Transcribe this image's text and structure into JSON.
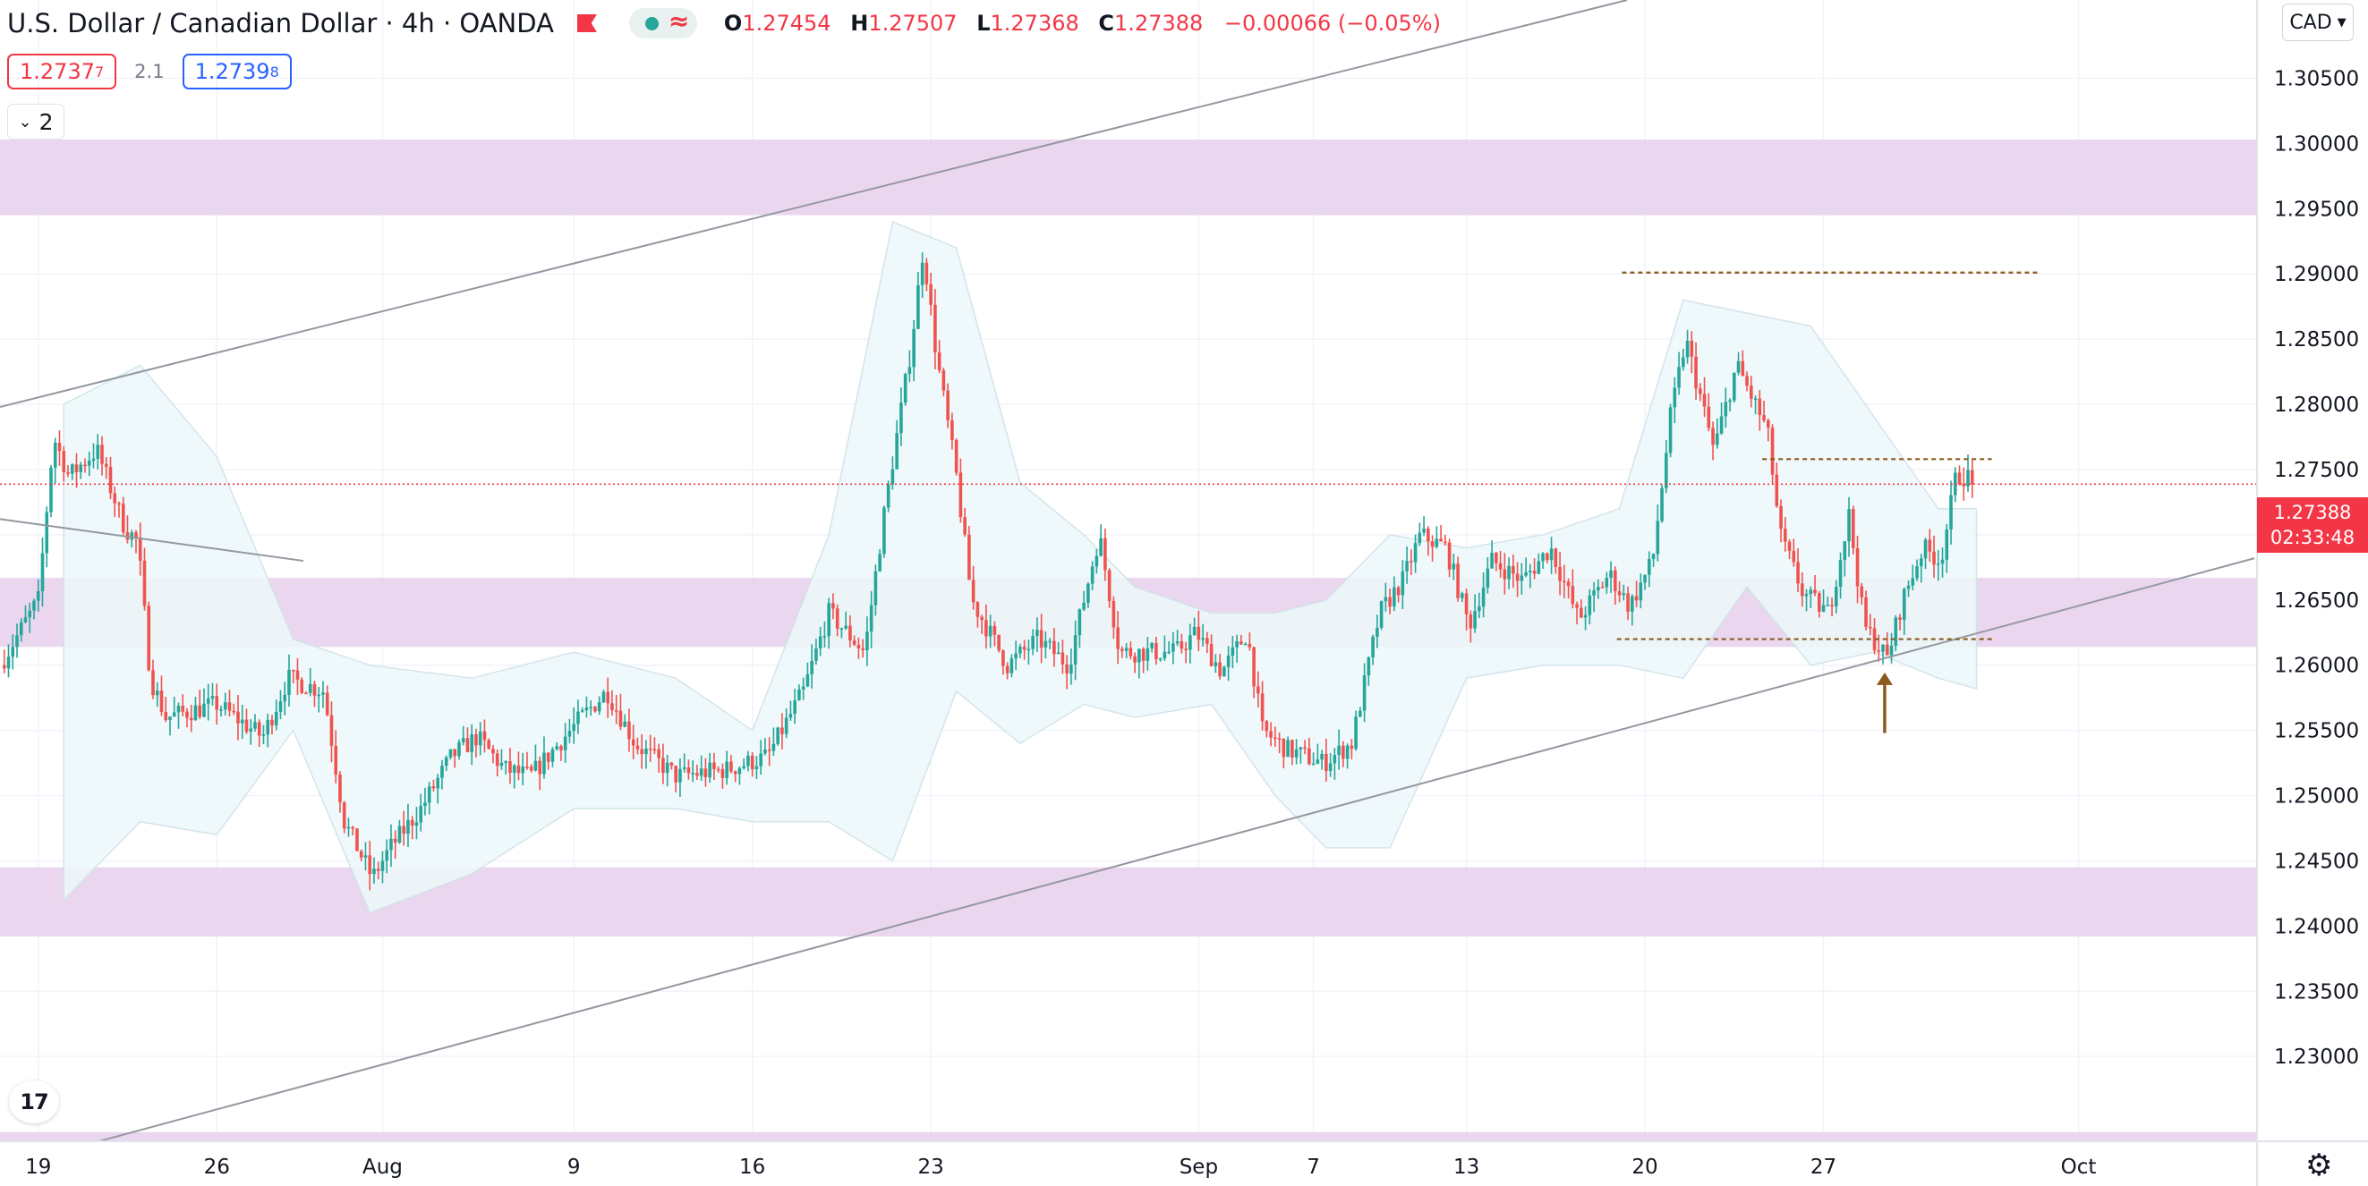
{
  "header": {
    "symbol": "U.S. Dollar / Canadian Dollar · 4h · OANDA",
    "ohlc": {
      "o_key": "O",
      "o": "1.27454",
      "h_key": "H",
      "h": "1.27507",
      "l_key": "L",
      "l": "1.27368",
      "c_key": "C",
      "c": "1.27388",
      "change": "−0.00066 (−0.05%)"
    },
    "indicator_icon": "wave-icon"
  },
  "quote": {
    "sell": "1.2737",
    "sell_small": "7",
    "spread": "2.1",
    "buy": "1.2739",
    "buy_small": "8"
  },
  "collapse_label": "2",
  "currency": "CAD",
  "last_price": {
    "value": "1.27388",
    "countdown": "02:33:48"
  },
  "logo_text": "17",
  "colors": {
    "up": "#26a69a",
    "down": "#ef5350",
    "zone": "#e6d0ec",
    "band": "#eef8fa",
    "level": "#8b5a1e",
    "trend": "#9598a1",
    "accent": "#2962ff"
  },
  "chart_data": {
    "type": "candlestick",
    "title": "U.S. Dollar / Canadian Dollar · 4h · OANDA",
    "xlabel": "",
    "ylabel": "",
    "y_ticks": [
      "1.30500",
      "1.30000",
      "1.29500",
      "1.29000",
      "1.28500",
      "1.28000",
      "1.27500",
      "1.27000",
      "1.26500",
      "1.26000",
      "1.25500",
      "1.25000",
      "1.24500",
      "1.24000",
      "1.23500",
      "1.23000"
    ],
    "x_ticks": [
      "19",
      "26",
      "Aug",
      "9",
      "16",
      "23",
      "Sep",
      "7",
      "13",
      "20",
      "27",
      "Oct"
    ],
    "x_tick_days": [
      0,
      7,
      13.5,
      21,
      28,
      35,
      45.5,
      50,
      56,
      63,
      70,
      80
    ],
    "xlim_days": [
      -1.5,
      87
    ],
    "ylim": [
      1.2235,
      1.311
    ],
    "grid": true,
    "last_price": 1.27388,
    "zones": [
      [
        1.2945,
        1.3003
      ],
      [
        1.2614,
        1.2667
      ],
      [
        1.2392,
        1.2445
      ],
      [
        1.2229,
        1.2242
      ]
    ],
    "levels": [
      {
        "y": 1.2901,
        "x0": 62.1,
        "x1": 78.5
      },
      {
        "y": 1.2758,
        "x0": 67.6,
        "x1": 76.6
      },
      {
        "y": 1.262,
        "x0": 61.9,
        "x1": 76.7
      }
    ],
    "trendlines": [
      {
        "x0": -1.5,
        "y0": 1.2798,
        "x1": 62.3,
        "y1": 1.311
      },
      {
        "x0": 2.0,
        "y0": 1.2233,
        "x1": 86.9,
        "y1": 1.2682
      },
      {
        "x0": -1.5,
        "y0": 1.2712,
        "x1": 10.4,
        "y1": 1.268
      }
    ],
    "arrow": {
      "x": 72.4,
      "y_from": 1.2548,
      "y_to": 1.2593
    },
    "key_points": [
      {
        "d": -1.5,
        "p": 1.26
      },
      {
        "d": 0.0,
        "p": 1.265
      },
      {
        "d": 0.6,
        "p": 1.2775
      },
      {
        "d": 1.2,
        "p": 1.2745
      },
      {
        "d": 2.3,
        "p": 1.2765
      },
      {
        "d": 3.4,
        "p": 1.2705
      },
      {
        "d": 3.9,
        "p": 1.2695
      },
      {
        "d": 4.4,
        "p": 1.259
      },
      {
        "d": 5.0,
        "p": 1.256
      },
      {
        "d": 7.0,
        "p": 1.257
      },
      {
        "d": 8.8,
        "p": 1.2545
      },
      {
        "d": 9.8,
        "p": 1.259
      },
      {
        "d": 11.2,
        "p": 1.258
      },
      {
        "d": 12.0,
        "p": 1.248
      },
      {
        "d": 13.1,
        "p": 1.2437
      },
      {
        "d": 13.8,
        "p": 1.246
      },
      {
        "d": 15.0,
        "p": 1.249
      },
      {
        "d": 16.2,
        "p": 1.253
      },
      {
        "d": 17.2,
        "p": 1.2545
      },
      {
        "d": 18.3,
        "p": 1.252
      },
      {
        "d": 19.3,
        "p": 1.2515
      },
      {
        "d": 21.3,
        "p": 1.256
      },
      {
        "d": 22.3,
        "p": 1.258
      },
      {
        "d": 23.4,
        "p": 1.254
      },
      {
        "d": 25.0,
        "p": 1.2515
      },
      {
        "d": 27.0,
        "p": 1.252
      },
      {
        "d": 28.6,
        "p": 1.253
      },
      {
        "d": 30.0,
        "p": 1.258
      },
      {
        "d": 31.0,
        "p": 1.264
      },
      {
        "d": 32.4,
        "p": 1.261
      },
      {
        "d": 33.2,
        "p": 1.272
      },
      {
        "d": 34.2,
        "p": 1.284
      },
      {
        "d": 34.7,
        "p": 1.292
      },
      {
        "d": 35.2,
        "p": 1.284
      },
      {
        "d": 36.0,
        "p": 1.2745
      },
      {
        "d": 36.6,
        "p": 1.265
      },
      {
        "d": 38.0,
        "p": 1.26
      },
      {
        "d": 39.2,
        "p": 1.262
      },
      {
        "d": 40.4,
        "p": 1.26
      },
      {
        "d": 41.6,
        "p": 1.27
      },
      {
        "d": 42.4,
        "p": 1.261
      },
      {
        "d": 44.6,
        "p": 1.261
      },
      {
        "d": 45.4,
        "p": 1.2625
      },
      {
        "d": 46.4,
        "p": 1.2595
      },
      {
        "d": 47.4,
        "p": 1.2625
      },
      {
        "d": 48.0,
        "p": 1.255
      },
      {
        "d": 49.0,
        "p": 1.2535
      },
      {
        "d": 50.4,
        "p": 1.2525
      },
      {
        "d": 51.5,
        "p": 1.254
      },
      {
        "d": 52.6,
        "p": 1.264
      },
      {
        "d": 53.5,
        "p": 1.2665
      },
      {
        "d": 54.2,
        "p": 1.27
      },
      {
        "d": 55.2,
        "p": 1.269
      },
      {
        "d": 56.1,
        "p": 1.263
      },
      {
        "d": 57.0,
        "p": 1.268
      },
      {
        "d": 58.2,
        "p": 1.2665
      },
      {
        "d": 59.3,
        "p": 1.269
      },
      {
        "d": 60.4,
        "p": 1.2635
      },
      {
        "d": 61.6,
        "p": 1.267
      },
      {
        "d": 62.4,
        "p": 1.2645
      },
      {
        "d": 63.3,
        "p": 1.268
      },
      {
        "d": 64.0,
        "p": 1.279
      },
      {
        "d": 64.6,
        "p": 1.285
      },
      {
        "d": 65.7,
        "p": 1.2765
      },
      {
        "d": 66.6,
        "p": 1.283
      },
      {
        "d": 67.8,
        "p": 1.278
      },
      {
        "d": 68.3,
        "p": 1.27
      },
      {
        "d": 69.2,
        "p": 1.2655
      },
      {
        "d": 70.2,
        "p": 1.264
      },
      {
        "d": 71.0,
        "p": 1.2715
      },
      {
        "d": 71.6,
        "p": 1.263
      },
      {
        "d": 72.5,
        "p": 1.2605
      },
      {
        "d": 73.1,
        "p": 1.265
      },
      {
        "d": 73.9,
        "p": 1.269
      },
      {
        "d": 74.6,
        "p": 1.268
      },
      {
        "d": 75.2,
        "p": 1.2745
      },
      {
        "d": 75.6,
        "p": 1.2745
      },
      {
        "d": 75.9,
        "p": 1.27388
      }
    ],
    "bollinger_points": [
      {
        "d": 1.0,
        "u": 1.28,
        "l": 1.242
      },
      {
        "d": 4.0,
        "u": 1.283,
        "l": 1.248
      },
      {
        "d": 7.0,
        "u": 1.276,
        "l": 1.247
      },
      {
        "d": 10.0,
        "u": 1.262,
        "l": 1.255
      },
      {
        "d": 13.0,
        "u": 1.26,
        "l": 1.241
      },
      {
        "d": 17.0,
        "u": 1.259,
        "l": 1.244
      },
      {
        "d": 21.0,
        "u": 1.261,
        "l": 1.249
      },
      {
        "d": 25.0,
        "u": 1.259,
        "l": 1.249
      },
      {
        "d": 28.0,
        "u": 1.255,
        "l": 1.248
      },
      {
        "d": 31.0,
        "u": 1.27,
        "l": 1.248
      },
      {
        "d": 33.5,
        "u": 1.294,
        "l": 1.245
      },
      {
        "d": 36.0,
        "u": 1.292,
        "l": 1.258
      },
      {
        "d": 38.5,
        "u": 1.274,
        "l": 1.254
      },
      {
        "d": 41.0,
        "u": 1.27,
        "l": 1.257
      },
      {
        "d": 43.0,
        "u": 1.266,
        "l": 1.256
      },
      {
        "d": 46.0,
        "u": 1.264,
        "l": 1.257
      },
      {
        "d": 48.5,
        "u": 1.264,
        "l": 1.25
      },
      {
        "d": 50.5,
        "u": 1.265,
        "l": 1.246
      },
      {
        "d": 53.0,
        "u": 1.27,
        "l": 1.246
      },
      {
        "d": 56.0,
        "u": 1.269,
        "l": 1.259
      },
      {
        "d": 59.0,
        "u": 1.27,
        "l": 1.26
      },
      {
        "d": 62.0,
        "u": 1.272,
        "l": 1.26
      },
      {
        "d": 64.5,
        "u": 1.288,
        "l": 1.259
      },
      {
        "d": 67.0,
        "u": 1.287,
        "l": 1.266
      },
      {
        "d": 69.5,
        "u": 1.286,
        "l": 1.26
      },
      {
        "d": 72.0,
        "u": 1.279,
        "l": 1.261
      },
      {
        "d": 74.5,
        "u": 1.272,
        "l": 1.259
      },
      {
        "d": 76.0,
        "u": 1.272,
        "l": 1.2582
      }
    ]
  }
}
